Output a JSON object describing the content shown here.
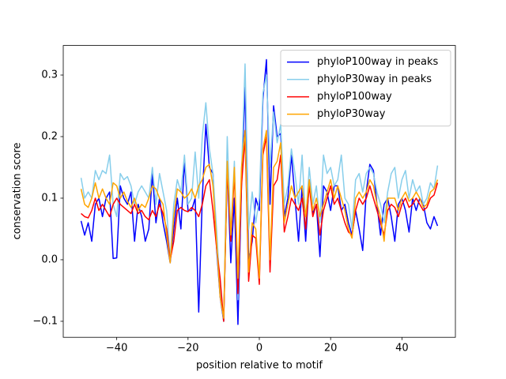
{
  "chart_data": {
    "type": "line",
    "xlabel": "position relative to motif",
    "ylabel": "conservation score",
    "x": [
      -50,
      -49,
      -48,
      -47,
      -46,
      -45,
      -44,
      -43,
      -42,
      -41,
      -40,
      -39,
      -38,
      -37,
      -36,
      -35,
      -34,
      -33,
      -32,
      -31,
      -30,
      -29,
      -28,
      -27,
      -26,
      -25,
      -24,
      -23,
      -22,
      -21,
      -20,
      -19,
      -18,
      -17,
      -16,
      -15,
      -14,
      -13,
      -12,
      -11,
      -10,
      -9,
      -8,
      -7,
      -6,
      -5,
      -4,
      -3,
      -2,
      -1,
      0,
      1,
      2,
      3,
      4,
      5,
      6,
      7,
      8,
      9,
      10,
      11,
      12,
      13,
      14,
      15,
      16,
      17,
      18,
      19,
      20,
      21,
      22,
      23,
      24,
      25,
      26,
      27,
      28,
      29,
      30,
      31,
      32,
      33,
      34,
      35,
      36,
      37,
      38,
      39,
      40,
      41,
      42,
      43,
      44,
      45,
      46,
      47,
      48,
      49,
      50
    ],
    "series": [
      {
        "name": "phyloP100way in peaks",
        "color": "#0000ff",
        "values": [
          0.063,
          0.04,
          0.06,
          0.03,
          0.09,
          0.1,
          0.07,
          0.1,
          0.11,
          0.002,
          0.003,
          0.12,
          0.1,
          0.09,
          0.11,
          0.03,
          0.09,
          0.07,
          0.03,
          0.05,
          0.14,
          0.06,
          0.1,
          0.06,
          0.03,
          -0.005,
          0.05,
          0.1,
          0.05,
          0.16,
          0.08,
          0.08,
          0.1,
          -0.085,
          0.1,
          0.22,
          0.15,
          0.14,
          0.02,
          -0.06,
          -0.1,
          0.15,
          -0.005,
          0.1,
          -0.105,
          0.12,
          0.28,
          0.0,
          0.03,
          0.1,
          0.08,
          0.26,
          0.325,
          0.09,
          0.25,
          0.2,
          0.205,
          0.07,
          0.1,
          0.17,
          0.1,
          0.03,
          0.12,
          0.03,
          0.13,
          0.075,
          0.09,
          0.005,
          0.12,
          0.11,
          0.08,
          0.12,
          0.12,
          0.08,
          0.09,
          0.06,
          0.04,
          0.08,
          0.05,
          0.015,
          0.11,
          0.155,
          0.145,
          0.09,
          0.04,
          0.09,
          0.1,
          0.07,
          0.03,
          0.09,
          0.1,
          0.08,
          0.045,
          0.1,
          0.08,
          0.1,
          0.09,
          0.06,
          0.05,
          0.07,
          0.055
        ]
      },
      {
        "name": "phyloP30way in peaks",
        "color": "#87ceeb",
        "values": [
          0.133,
          0.1,
          0.11,
          0.1,
          0.145,
          0.13,
          0.145,
          0.14,
          0.17,
          0.09,
          0.07,
          0.14,
          0.13,
          0.135,
          0.12,
          0.09,
          0.11,
          0.12,
          0.11,
          0.1,
          0.15,
          0.09,
          0.14,
          0.11,
          0.08,
          0.0,
          0.09,
          0.13,
          0.11,
          0.17,
          0.09,
          0.1,
          0.175,
          0.1,
          0.2,
          0.255,
          0.18,
          0.14,
          0.05,
          -0.05,
          -0.1,
          0.2,
          0.04,
          0.16,
          -0.065,
          0.14,
          0.318,
          0.05,
          0.11,
          0.06,
          0.1,
          0.27,
          0.3,
          0.15,
          0.24,
          0.19,
          0.22,
          0.09,
          0.12,
          0.18,
          0.14,
          0.09,
          0.17,
          0.06,
          0.15,
          0.09,
          0.12,
          0.06,
          0.17,
          0.14,
          0.15,
          0.12,
          0.13,
          0.17,
          0.1,
          0.09,
          0.05,
          0.13,
          0.14,
          0.11,
          0.14,
          0.15,
          0.14,
          0.11,
          0.09,
          0.06,
          0.11,
          0.14,
          0.15,
          0.1,
          0.13,
          0.145,
          0.1,
          0.13,
          0.11,
          0.12,
          0.09,
          0.1,
          0.125,
          0.115,
          0.153
        ]
      },
      {
        "name": "phyloP100way",
        "color": "#ff0000",
        "values": [
          0.075,
          0.07,
          0.068,
          0.08,
          0.1,
          0.08,
          0.09,
          0.08,
          0.07,
          0.09,
          0.1,
          0.09,
          0.085,
          0.08,
          0.075,
          0.09,
          0.075,
          0.08,
          0.07,
          0.065,
          0.08,
          0.07,
          0.09,
          0.075,
          0.05,
          0.0,
          0.03,
          0.08,
          0.085,
          0.08,
          0.078,
          0.085,
          0.08,
          0.07,
          0.09,
          0.12,
          0.13,
          0.08,
          0.02,
          -0.03,
          -0.1,
          0.15,
          0.03,
          0.14,
          -0.055,
          0.12,
          0.2,
          -0.035,
          0.04,
          0.035,
          -0.04,
          0.17,
          0.2,
          -0.02,
          0.12,
          0.13,
          0.17,
          0.045,
          0.07,
          0.1,
          0.09,
          0.08,
          0.1,
          0.05,
          0.12,
          0.07,
          0.09,
          0.04,
          0.08,
          0.1,
          0.12,
          0.09,
          0.1,
          0.08,
          0.06,
          0.045,
          0.04,
          0.08,
          0.1,
          0.09,
          0.1,
          0.12,
          0.1,
          0.08,
          0.06,
          0.04,
          0.08,
          0.09,
          0.085,
          0.07,
          0.09,
          0.1,
          0.085,
          0.09,
          0.1,
          0.09,
          0.08,
          0.085,
          0.1,
          0.105,
          0.125
        ]
      },
      {
        "name": "phyloP30way",
        "color": "#ffa500",
        "values": [
          0.115,
          0.09,
          0.085,
          0.1,
          0.125,
          0.1,
          0.115,
          0.1,
          0.09,
          0.125,
          0.12,
          0.1,
          0.11,
          0.095,
          0.085,
          0.1,
          0.08,
          0.09,
          0.085,
          0.1,
          0.12,
          0.115,
          0.1,
          0.09,
          0.04,
          -0.005,
          0.07,
          0.115,
          0.11,
          0.1,
          0.105,
          0.115,
          0.1,
          0.12,
          0.13,
          0.15,
          0.155,
          0.12,
          0.03,
          -0.06,
          -0.095,
          0.16,
          0.04,
          0.15,
          -0.03,
          0.15,
          0.21,
          -0.02,
          0.06,
          0.05,
          -0.03,
          0.18,
          0.21,
          0.0,
          0.15,
          0.16,
          0.19,
          0.06,
          0.09,
          0.12,
          0.1,
          0.11,
          0.12,
          0.07,
          0.13,
          0.08,
          0.1,
          0.07,
          0.09,
          0.11,
          0.13,
          0.1,
          0.12,
          0.1,
          0.08,
          0.05,
          0.035,
          0.1,
          0.11,
          0.1,
          0.11,
          0.13,
          0.12,
          0.09,
          0.07,
          0.03,
          0.1,
          0.1,
          0.1,
          0.08,
          0.1,
          0.11,
          0.095,
          0.1,
          0.11,
          0.1,
          0.085,
          0.09,
          0.11,
          0.115,
          0.13
        ]
      }
    ],
    "xlim": [
      -55,
      55
    ],
    "ylim": [
      -0.126,
      0.348
    ],
    "xticks": [
      {
        "value": -40,
        "label": "−40"
      },
      {
        "value": -20,
        "label": "−20"
      },
      0,
      20,
      40
    ],
    "yticks": [
      {
        "value": -0.1,
        "label": "−0.1"
      },
      {
        "value": 0,
        "label": "0.0"
      },
      0.1,
      0.2,
      0.3
    ],
    "legend": "upper right"
  }
}
